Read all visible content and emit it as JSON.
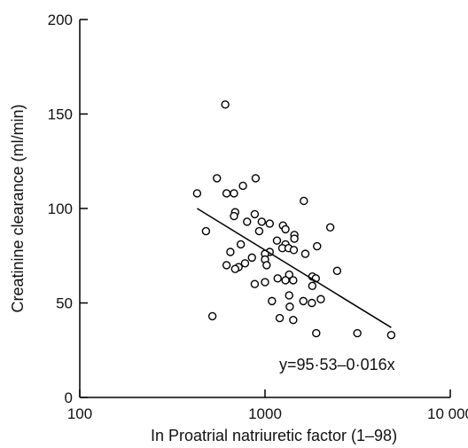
{
  "chart_data": {
    "type": "scatter",
    "title": "",
    "xlabel": "In Proatrial natriuretic factor (1–98)",
    "ylabel": "Creatinine clearance (ml/min)",
    "x_scale": "log",
    "xlim": [
      100,
      10000
    ],
    "ylim": [
      0,
      200
    ],
    "grid": false,
    "x_ticks": [
      100,
      1000,
      10000
    ],
    "x_tick_labels": [
      "100",
      "1000",
      "10 000"
    ],
    "y_ticks": [
      0,
      50,
      100,
      150,
      200
    ],
    "y_tick_labels": [
      "0",
      "50",
      "100",
      "150",
      "200"
    ],
    "regression": {
      "label": "y=95·53–0·016x",
      "x": [
        430,
        4800
      ],
      "y": [
        100,
        37
      ]
    },
    "points": [
      {
        "x": 610,
        "y": 155
      },
      {
        "x": 550,
        "y": 116
      },
      {
        "x": 890,
        "y": 116
      },
      {
        "x": 620,
        "y": 108
      },
      {
        "x": 430,
        "y": 108
      },
      {
        "x": 680,
        "y": 108
      },
      {
        "x": 760,
        "y": 112
      },
      {
        "x": 1620,
        "y": 104
      },
      {
        "x": 690,
        "y": 98
      },
      {
        "x": 680,
        "y": 96
      },
      {
        "x": 880,
        "y": 97
      },
      {
        "x": 800,
        "y": 93
      },
      {
        "x": 960,
        "y": 93
      },
      {
        "x": 1060,
        "y": 92
      },
      {
        "x": 1250,
        "y": 91
      },
      {
        "x": 1290,
        "y": 89
      },
      {
        "x": 480,
        "y": 88
      },
      {
        "x": 930,
        "y": 88
      },
      {
        "x": 2250,
        "y": 90
      },
      {
        "x": 1440,
        "y": 86
      },
      {
        "x": 1440,
        "y": 84
      },
      {
        "x": 1160,
        "y": 83
      },
      {
        "x": 1290,
        "y": 81
      },
      {
        "x": 740,
        "y": 81
      },
      {
        "x": 1910,
        "y": 80
      },
      {
        "x": 1240,
        "y": 79
      },
      {
        "x": 1340,
        "y": 79
      },
      {
        "x": 1430,
        "y": 78
      },
      {
        "x": 1060,
        "y": 77
      },
      {
        "x": 650,
        "y": 77
      },
      {
        "x": 1650,
        "y": 76
      },
      {
        "x": 1000,
        "y": 76
      },
      {
        "x": 850,
        "y": 74
      },
      {
        "x": 1000,
        "y": 73
      },
      {
        "x": 780,
        "y": 71
      },
      {
        "x": 1020,
        "y": 70
      },
      {
        "x": 620,
        "y": 70
      },
      {
        "x": 720,
        "y": 69
      },
      {
        "x": 690,
        "y": 68
      },
      {
        "x": 2450,
        "y": 67
      },
      {
        "x": 1350,
        "y": 65
      },
      {
        "x": 1800,
        "y": 64
      },
      {
        "x": 1170,
        "y": 63
      },
      {
        "x": 1880,
        "y": 63
      },
      {
        "x": 1290,
        "y": 62
      },
      {
        "x": 1420,
        "y": 62
      },
      {
        "x": 1000,
        "y": 61
      },
      {
        "x": 880,
        "y": 60
      },
      {
        "x": 1800,
        "y": 59
      },
      {
        "x": 1350,
        "y": 54
      },
      {
        "x": 1090,
        "y": 51
      },
      {
        "x": 2000,
        "y": 52
      },
      {
        "x": 1610,
        "y": 51
      },
      {
        "x": 1790,
        "y": 50
      },
      {
        "x": 1360,
        "y": 48
      },
      {
        "x": 520,
        "y": 43
      },
      {
        "x": 1200,
        "y": 42
      },
      {
        "x": 1420,
        "y": 41
      },
      {
        "x": 1890,
        "y": 34
      },
      {
        "x": 3150,
        "y": 34
      },
      {
        "x": 4800,
        "y": 33
      }
    ]
  }
}
